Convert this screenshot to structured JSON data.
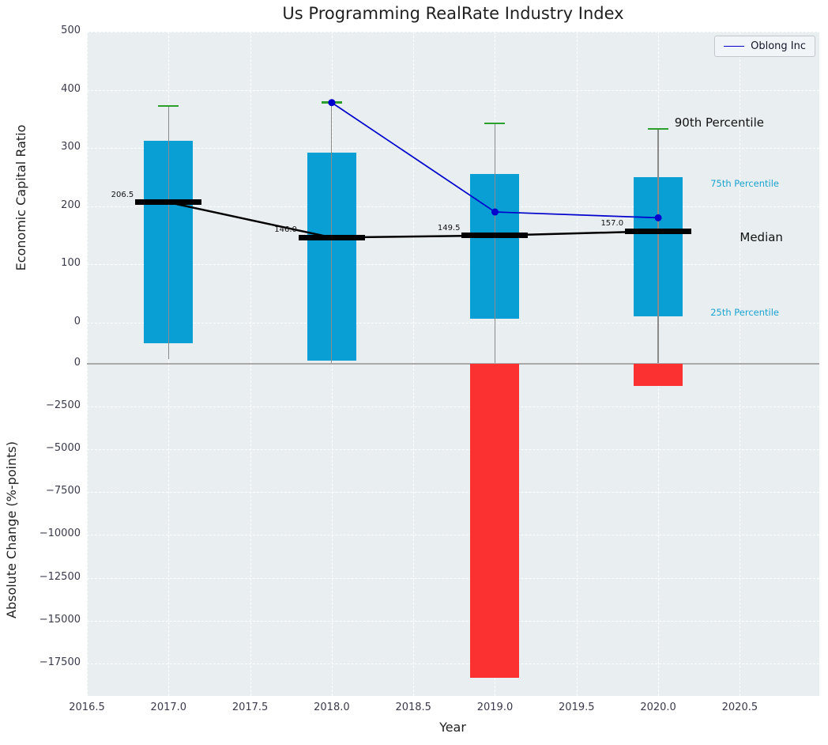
{
  "title": "Us Programming RealRate Industry Index",
  "xlabel": "Year",
  "legend": {
    "label": "Oblong Inc"
  },
  "colors": {
    "bar": "#0a9fd4",
    "negative_bar": "#fb3030",
    "company_line": "#0000cc",
    "median_line": "#000000",
    "p90_cap": "#2ca02c",
    "whisker": "#8a8a8a",
    "percentile_text": "#1ba3cf",
    "dark_text": "#111111",
    "plot_bg": "#e9eef1",
    "separator": "#a9a9a9"
  },
  "chart_data": {
    "type": "combo-boxplot-line-bar",
    "title": "Us Programming RealRate Industry Index",
    "xlabel": "Year",
    "x_ticks": [
      2016.5,
      2017.0,
      2017.5,
      2018.0,
      2018.5,
      2019.0,
      2019.5,
      2020.0,
      2020.5
    ],
    "x_range": [
      2016.5,
      2020.987
    ],
    "top_panel": {
      "ylabel": "Economic Capital Ratio",
      "y_range": [
        -71,
        500
      ],
      "y_ticks": [
        0,
        100,
        200,
        300,
        400,
        500
      ],
      "boxes": [
        {
          "year": 2017,
          "median": 206.5,
          "p25": -36,
          "p75": 313,
          "p90": 372,
          "whisker_low": -63
        },
        {
          "year": 2018,
          "median": 146.0,
          "p25": -65,
          "p75": 292,
          "p90": 378,
          "whisker_low": -70
        },
        {
          "year": 2019,
          "median": 149.5,
          "p25": 6,
          "p75": 255,
          "p90": 342,
          "whisker_low": -70
        },
        {
          "year": 2020,
          "median": 157.0,
          "p25": 10,
          "p75": 250,
          "p90": 333,
          "whisker_low": -70
        }
      ],
      "median_labels": [
        "206.5",
        "146.0",
        "149.5",
        "157.0"
      ],
      "company_series": {
        "name": "Oblong Inc",
        "points": [
          {
            "x": 2018,
            "y": 378
          },
          {
            "x": 2019,
            "y": 190
          },
          {
            "x": 2020,
            "y": 180
          }
        ]
      },
      "annotations": [
        {
          "text": "90th Percentile",
          "x": 2020.1,
          "y": 343,
          "color": "#111111",
          "size": 15
        },
        {
          "text": "75th Percentile",
          "x": 2020.32,
          "y": 239,
          "color": "#1ba3cf",
          "size": 11.5
        },
        {
          "text": "Median",
          "x": 2020.5,
          "y": 146,
          "color": "#111111",
          "size": 15
        },
        {
          "text": "25th Percentile",
          "x": 2020.32,
          "y": 18,
          "color": "#1ba3cf",
          "size": 11.5
        }
      ]
    },
    "bottom_panel": {
      "ylabel": "Absolute Change (%-points)",
      "y_range": [
        -19400,
        0
      ],
      "y_ticks": [
        0,
        -2500,
        -5000,
        -7500,
        -10000,
        -12500,
        -15000,
        -17500
      ],
      "bars": [
        {
          "year": 2019,
          "value": -18350
        },
        {
          "year": 2020,
          "value": -1300
        }
      ]
    }
  }
}
